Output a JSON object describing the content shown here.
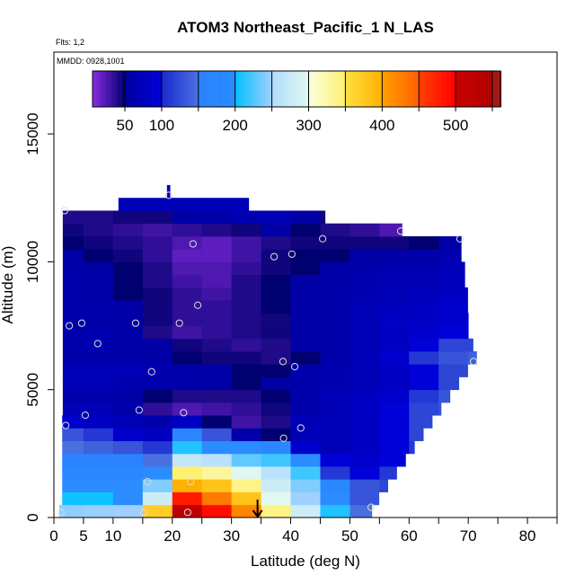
{
  "chart_data": {
    "type": "heatmap",
    "title": "ATOM3 Northeast_Pacific_1 N_LAS",
    "annotations": {
      "flights": "Flts: 1,2",
      "dates": "MMDD: 0928,1001"
    },
    "xlabel": "Latitude (deg N)",
    "ylabel": "Altitude (m)",
    "xlim": [
      0,
      85
    ],
    "ylim": [
      0,
      18200
    ],
    "x_ticks": [
      0,
      5,
      10,
      15,
      20,
      25,
      30,
      35,
      40,
      45,
      50,
      55,
      60,
      65,
      70,
      75,
      80,
      85
    ],
    "x_tick_labels": [
      "0",
      "5",
      "10",
      "20",
      "30",
      "40",
      "50",
      "60",
      "70",
      "80"
    ],
    "x_tick_label_values": [
      0,
      5,
      10,
      20,
      30,
      40,
      50,
      60,
      70,
      80
    ],
    "y_ticks": [
      0,
      5000,
      10000,
      15000
    ],
    "y_tick_labels": [
      "0",
      "5000",
      "10000",
      "15000"
    ],
    "colorbar": {
      "range": [
        6,
        561
      ],
      "ticks": [
        50,
        100,
        150,
        200,
        250,
        300,
        350,
        400,
        450,
        500,
        550
      ],
      "tick_labels": [
        "50",
        "100",
        "200",
        "300",
        "400",
        "500"
      ],
      "tick_label_values": [
        50,
        100,
        200,
        300,
        400,
        500
      ],
      "colors": [
        "#8a2be2",
        "#000080",
        "#0000c8",
        "#4a6ee0",
        "#2a86ff",
        "#00bfff",
        "#a8d8ff",
        "#e8fbf4",
        "#fff7a0",
        "#ffd21e",
        "#ffa500",
        "#ff6a00",
        "#ff1000",
        "#c80000",
        "#a01818"
      ]
    },
    "lat_bin_centers": [
      2.5,
      7.5,
      12.5,
      17.5,
      22.5,
      27.5,
      32.5,
      37.5,
      42.5,
      47.5,
      52.5,
      57.5,
      62.5,
      67.5,
      72.5
    ],
    "rows": [
      {
        "alt": [
          0,
          500
        ],
        "lat_range": [
          0.9,
          53.7
        ],
        "values": [
          245,
          248,
          250,
          370,
          520,
          490,
          420,
          340,
          280,
          210,
          150
        ]
      },
      {
        "alt": [
          500,
          1000
        ],
        "lat_range": [
          1.4,
          54.9
        ],
        "values": [
          205,
          205,
          200,
          280,
          480,
          430,
          380,
          300,
          250,
          200,
          130
        ]
      },
      {
        "alt": [
          1000,
          1500
        ],
        "lat_range": [
          1.4,
          56.4
        ],
        "values": [
          200,
          200,
          200,
          240,
          400,
          380,
          340,
          280,
          240,
          180,
          130,
          120
        ]
      },
      {
        "alt": [
          1500,
          2000
        ],
        "lat_range": [
          1.4,
          57.9
        ],
        "values": [
          180,
          180,
          180,
          200,
          350,
          330,
          300,
          260,
          220,
          110,
          100,
          110
        ]
      },
      {
        "alt": [
          2000,
          2500
        ],
        "lat_range": [
          1.4,
          59.4
        ],
        "values": [
          160,
          160,
          160,
          150,
          270,
          260,
          230,
          220,
          200,
          100,
          90,
          100
        ]
      },
      {
        "alt": [
          2500,
          3000
        ],
        "lat_range": [
          1.4,
          60.9
        ],
        "values": [
          150,
          140,
          130,
          110,
          210,
          200,
          190,
          180,
          90,
          70,
          80,
          100,
          110
        ]
      },
      {
        "alt": [
          3000,
          3500
        ],
        "lat_range": [
          1.4,
          62.4
        ],
        "values": [
          130,
          110,
          90,
          80,
          170,
          130,
          60,
          50,
          70,
          70,
          80,
          100,
          120
        ]
      },
      {
        "alt": [
          3500,
          4000
        ],
        "lat_range": [
          1.4,
          63.9
        ],
        "values": [
          90,
          80,
          70,
          60,
          80,
          50,
          30,
          40,
          70,
          70,
          80,
          100,
          120
        ]
      },
      {
        "alt": [
          4000,
          4500
        ],
        "lat_range": [
          1.5,
          65.4
        ],
        "values": [
          70,
          70,
          60,
          35,
          25,
          30,
          35,
          45,
          60,
          70,
          80,
          100,
          120,
          130
        ]
      },
      {
        "alt": [
          4500,
          5000
        ],
        "lat_range": [
          1.5,
          66.9
        ],
        "values": [
          60,
          60,
          55,
          50,
          40,
          40,
          40,
          50,
          60,
          70,
          80,
          90,
          110,
          130
        ]
      },
      {
        "alt": [
          5000,
          5500
        ],
        "lat_range": [
          1.5,
          68.4
        ],
        "values": [
          70,
          70,
          65,
          60,
          60,
          55,
          50,
          55,
          60,
          65,
          70,
          80,
          100,
          120
        ]
      },
      {
        "alt": [
          5500,
          6000
        ],
        "lat_range": [
          1.5,
          69.9
        ],
        "values": [
          70,
          70,
          70,
          65,
          60,
          55,
          50,
          50,
          60,
          65,
          70,
          80,
          100,
          120
        ]
      },
      {
        "alt": [
          6000,
          6500
        ],
        "lat_range": [
          1.5,
          71.4
        ],
        "values": [
          60,
          60,
          60,
          55,
          50,
          45,
          45,
          40,
          50,
          60,
          70,
          90,
          110,
          130,
          140
        ]
      },
      {
        "alt": [
          6500,
          7000
        ],
        "lat_range": [
          1.5,
          70.8
        ],
        "values": [
          60,
          65,
          60,
          55,
          45,
          40,
          35,
          40,
          55,
          60,
          70,
          80,
          100,
          120,
          120
        ]
      },
      {
        "alt": [
          7000,
          7500
        ],
        "lat_range": [
          1.5,
          70.3
        ],
        "values": [
          60,
          65,
          55,
          40,
          30,
          35,
          40,
          45,
          55,
          60,
          70,
          80,
          90,
          100
        ]
      },
      {
        "alt": [
          7500,
          8000
        ],
        "lat_range": [
          1.5,
          70.3
        ],
        "values": [
          60,
          60,
          55,
          45,
          35,
          35,
          40,
          45,
          55,
          60,
          70,
          80,
          80,
          90
        ]
      },
      {
        "alt": [
          8000,
          8500
        ],
        "lat_range": [
          1.5,
          69.9
        ],
        "values": [
          60,
          60,
          55,
          45,
          35,
          35,
          40,
          50,
          55,
          60,
          70,
          75,
          80,
          90
        ]
      },
      {
        "alt": [
          8500,
          9000
        ],
        "lat_range": [
          1.5,
          69.9
        ],
        "values": [
          60,
          55,
          50,
          45,
          35,
          30,
          40,
          50,
          55,
          60,
          65,
          70,
          75,
          80
        ]
      },
      {
        "alt": [
          9000,
          9500
        ],
        "lat_range": [
          1.5,
          69.4
        ],
        "values": [
          60,
          55,
          50,
          40,
          30,
          25,
          40,
          50,
          55,
          60,
          65,
          70,
          70,
          75
        ]
      },
      {
        "alt": [
          9500,
          10000
        ],
        "lat_range": [
          1.5,
          69.4
        ],
        "values": [
          60,
          55,
          50,
          40,
          25,
          25,
          35,
          45,
          50,
          55,
          60,
          65,
          65,
          70
        ]
      },
      {
        "alt": [
          10000,
          10500
        ],
        "lat_range": [
          1.5,
          68.8
        ],
        "values": [
          55,
          50,
          45,
          35,
          20,
          20,
          30,
          45,
          50,
          50,
          55,
          55,
          60,
          65
        ]
      },
      {
        "alt": [
          10500,
          11000
        ],
        "lat_range": [
          1.5,
          68.8
        ],
        "values": [
          50,
          45,
          40,
          35,
          25,
          20,
          30,
          40,
          45,
          45,
          45,
          45,
          50,
          55
        ]
      },
      {
        "alt": [
          11000,
          11500
        ],
        "lat_range": [
          1.5,
          58.8
        ],
        "values": [
          45,
          40,
          35,
          30,
          35,
          40,
          45,
          55,
          50,
          40,
          35,
          25
        ]
      },
      {
        "alt": [
          11500,
          12000
        ],
        "lat_range": [
          1.5,
          45.8
        ],
        "values": [
          40,
          40,
          45,
          45,
          55,
          60,
          65,
          70,
          55,
          45
        ]
      },
      {
        "alt": [
          12000,
          12500
        ],
        "lat_range": [
          10.9,
          32.9
        ],
        "values": [
          null,
          null,
          70,
          70,
          68,
          70,
          70
        ]
      },
      {
        "alt": [
          12500,
          13000
        ],
        "lat_range": [
          19.1,
          19.6
        ],
        "values": [
          null,
          null,
          null,
          70
        ]
      }
    ],
    "sample_points": [
      [
        1.8,
        12000
      ],
      [
        19.4,
        12600
      ],
      [
        23.5,
        10700
      ],
      [
        37.2,
        10200
      ],
      [
        40.2,
        10300
      ],
      [
        45.4,
        10900
      ],
      [
        58.6,
        11200
      ],
      [
        68.6,
        10900
      ],
      [
        24.3,
        8300
      ],
      [
        2.6,
        7500
      ],
      [
        4.7,
        7600
      ],
      [
        13.8,
        7600
      ],
      [
        21.2,
        7600
      ],
      [
        7.4,
        6800
      ],
      [
        16.5,
        5700
      ],
      [
        38.7,
        6100
      ],
      [
        40.7,
        5900
      ],
      [
        70.9,
        6100
      ],
      [
        2.0,
        3600
      ],
      [
        5.3,
        4000
      ],
      [
        14.4,
        4200
      ],
      [
        21.9,
        4100
      ],
      [
        41.7,
        3500
      ],
      [
        38.8,
        3100
      ],
      [
        15.8,
        1400
      ],
      [
        23.1,
        1400
      ],
      [
        1.2,
        200
      ],
      [
        15.2,
        200
      ],
      [
        22.6,
        200
      ],
      [
        53.6,
        400
      ]
    ],
    "marker_arrow": {
      "lat": 34.4,
      "alt_from": 700,
      "alt_to": 0
    }
  }
}
